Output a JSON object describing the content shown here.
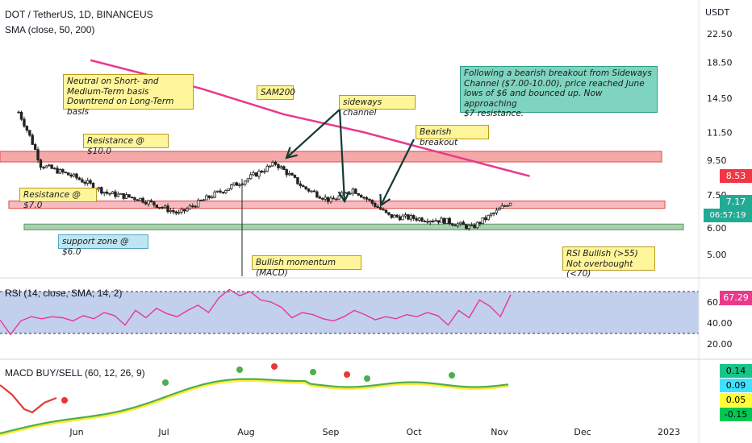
{
  "header": {
    "symbol_line": "DOT / TetherUS, 1D, BINANCEUS",
    "sma_line": "SMA (close, 50, 200)"
  },
  "chart_data": {
    "type": "candlestick",
    "currency_label": "USDT",
    "y_scale": "log",
    "price_ticks": [
      "22.50",
      "18.50",
      "14.50",
      "11.50",
      "9.50",
      "7.50",
      "6.00",
      "5.00"
    ],
    "x_ticks": [
      "Jun",
      "Jul",
      "Aug",
      "Sep",
      "Oct",
      "Nov",
      "Dec",
      "2023"
    ],
    "price_path_approx": [
      [
        13.2,
        "May 11"
      ],
      [
        9.2,
        "May 19"
      ],
      [
        8.5,
        "May 31"
      ],
      [
        7.6,
        "Jun 12"
      ],
      [
        7.3,
        "Jun 24"
      ],
      [
        6.6,
        "Jul 8"
      ],
      [
        7.4,
        "Jul 19"
      ],
      [
        8.3,
        "Aug 1"
      ],
      [
        9.3,
        "Aug 12"
      ],
      [
        7.9,
        "Aug 22"
      ],
      [
        7.2,
        "Sep 1"
      ],
      [
        7.8,
        "Sep 9"
      ],
      [
        6.5,
        "Sep 22"
      ],
      [
        6.3,
        "Oct 12"
      ],
      [
        6.0,
        "Oct 22"
      ],
      [
        6.7,
        "Oct 31"
      ],
      [
        7.17,
        "Nov 5"
      ]
    ],
    "sma200_path_approx": [
      [
        18.8,
        "Jun 6"
      ],
      [
        15.5,
        "Jul 16"
      ],
      [
        13.0,
        "Aug 15"
      ],
      [
        11.5,
        "Sep 13"
      ],
      [
        10.5,
        "Oct 1"
      ],
      [
        8.53,
        "Nov 12"
      ]
    ],
    "horizontal_zones": [
      {
        "label": "Resistance @ $10.0",
        "low": 9.4,
        "high": 10.1,
        "color": "#f28b8b"
      },
      {
        "label": "Resistance @ $7.0",
        "low": 6.85,
        "high": 7.2,
        "color": "#f4a3a8"
      },
      {
        "label": "support zone @ $6.0",
        "low": 5.95,
        "high": 6.15,
        "color": "#8fbf93"
      }
    ],
    "price_tags": [
      {
        "value": "8.53",
        "color": "#f23645"
      },
      {
        "value": "7.17",
        "color": "#22ab94"
      },
      {
        "value": "06:57:19",
        "color": "#22ab94"
      }
    ],
    "annotations": [
      "Neutral on Short- and\nMedium-Term basis\nDowntrend on Long-Term basis",
      "SAM200",
      "sideways channel",
      "Bearish breakout",
      "Following a bearish breakout from Sideways\nChannel ($7.00-10.00), price reached June\nlows of $6 and bounced up. Now approaching\n$7 resistance.",
      "Resistance @ $10.0",
      "Resistance @ $7.0",
      "support zone @ $6.0",
      "Bullish momentum (MACD)",
      "RSI Bullish (>55)\nNot overbought (<70)"
    ],
    "rsi": {
      "title": "RSI (14, close, SMA, 14, 2)",
      "ticks": [
        "60.00",
        "40.00",
        "20.00"
      ],
      "band": [
        30,
        70
      ],
      "current": "67.29",
      "values_approx": [
        43,
        29,
        42,
        46,
        44,
        46,
        45,
        42,
        47,
        44,
        50,
        47,
        38,
        52,
        45,
        54,
        49,
        46,
        52,
        57,
        50,
        64,
        72,
        66,
        70,
        62,
        60,
        55,
        45,
        50,
        48,
        44,
        42,
        46,
        52,
        48,
        43,
        46,
        44,
        48,
        46,
        50,
        47,
        38,
        52,
        45,
        62,
        56,
        46,
        67
      ]
    },
    "macd": {
      "title": "MACD BUY/SELL (60, 12, 26, 9)",
      "values": [
        "0.14",
        "0.09",
        "0.05",
        "-0.15"
      ]
    }
  },
  "colors": {
    "up": "#26a69a",
    "down": "#ef5350",
    "candle": "#222222",
    "sma200": "#e8398d",
    "rsi_line": "#e8398d",
    "rsi_fill": "#b7c7ea",
    "arrow": "#163a33"
  }
}
